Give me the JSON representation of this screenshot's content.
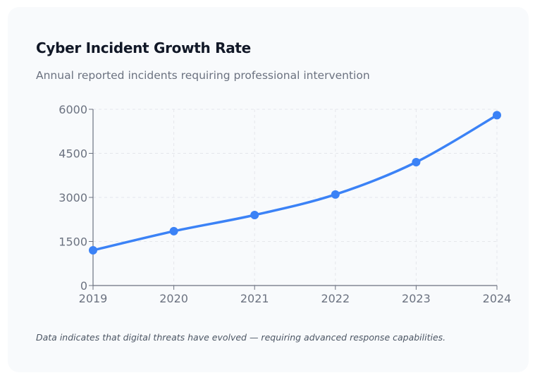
{
  "card": {
    "title": "Cyber Incident Growth Rate",
    "subtitle": "Annual reported incidents requiring professional intervention",
    "footnote": "Data indicates that digital threats have evolved — requiring advanced response capabilities."
  },
  "chart_data": {
    "type": "line",
    "categories": [
      "2019",
      "2020",
      "2021",
      "2022",
      "2023",
      "2024"
    ],
    "series": [
      {
        "values": [
          1200,
          1850,
          2400,
          3100,
          4200,
          5800
        ]
      }
    ],
    "ylim": [
      0,
      6000
    ],
    "yticks": [
      "0",
      "1500",
      "3000",
      "4500",
      "6000"
    ],
    "grid": true,
    "curve": "smooth",
    "markers": true,
    "colors": {
      "line": "#3b82f6",
      "grid": "#e5e7eb",
      "axis": "#6b7280"
    }
  }
}
